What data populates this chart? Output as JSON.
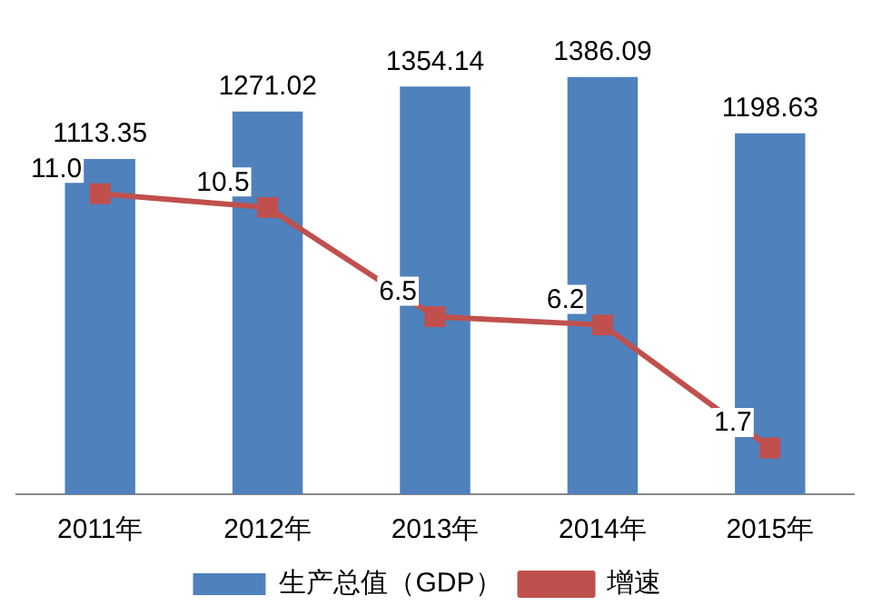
{
  "chart_data": {
    "type": "bar",
    "categories": [
      "2011年",
      "2012年",
      "2013年",
      "2014年",
      "2015年"
    ],
    "series": [
      {
        "name": "生产总值（GDP）",
        "color": "#4f81bd",
        "values": [
          1113.35,
          1271.02,
          1354.14,
          1386.09,
          1198.63
        ],
        "value_labels": [
          "1113.35",
          "1271.02",
          "1354.14",
          "1386.09",
          "1198.63"
        ]
      },
      {
        "name": "增速",
        "type": "line",
        "axis": "y2",
        "color": "#c0504d",
        "marker": "square",
        "values": [
          11.0,
          10.5,
          6.5,
          6.2,
          1.7
        ],
        "value_labels": [
          "11.0",
          "10.5",
          "6.5",
          "6.2",
          "1.7"
        ]
      }
    ],
    "legend": "bottom",
    "tick_labels": "x"
  }
}
